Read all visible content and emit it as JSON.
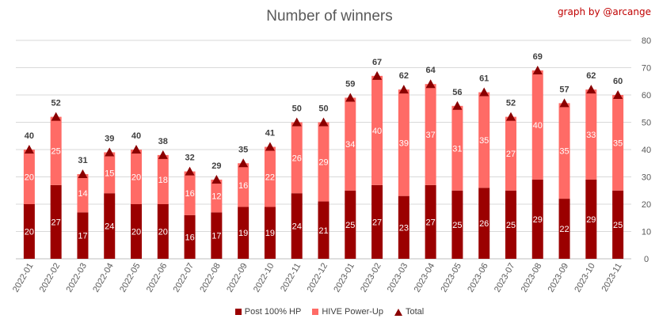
{
  "chart_data": {
    "type": "bar",
    "title": "Number of winners",
    "credit": "graph by @arcange",
    "categories": [
      "2022-01",
      "2022-02",
      "2022-03",
      "2022-04",
      "2022-05",
      "2022-06",
      "2022-07",
      "2022-08",
      "2022-09",
      "2022-10",
      "2022-11",
      "2022-12",
      "2023-01",
      "2023-02",
      "2023-03",
      "2023-04",
      "2023-05",
      "2023-06",
      "2023-07",
      "2023-08",
      "2023-09",
      "2023-10",
      "2023-11"
    ],
    "series": [
      {
        "name": "Post 100% HP",
        "color": "#9b0000",
        "values": [
          20,
          27,
          17,
          24,
          20,
          20,
          16,
          17,
          19,
          19,
          24,
          21,
          25,
          27,
          23,
          27,
          25,
          26,
          25,
          29,
          22,
          29,
          25
        ]
      },
      {
        "name": "HIVE Power-Up",
        "color": "#ff6b66",
        "values": [
          20,
          25,
          14,
          15,
          20,
          18,
          16,
          12,
          16,
          22,
          26,
          29,
          34,
          40,
          39,
          37,
          31,
          35,
          27,
          40,
          35,
          33,
          35
        ]
      },
      {
        "name": "Total",
        "color": "#8b0000",
        "marker": "triangle",
        "values": [
          40,
          52,
          31,
          39,
          40,
          38,
          32,
          29,
          35,
          41,
          50,
          50,
          59,
          67,
          62,
          64,
          56,
          61,
          52,
          69,
          57,
          62,
          60
        ]
      }
    ],
    "y_axis": {
      "position": "right",
      "ylim": [
        0,
        80
      ],
      "ticks": [
        0,
        10,
        20,
        30,
        40,
        50,
        60,
        70,
        80
      ]
    },
    "grid": true,
    "legend_position": "bottom"
  }
}
